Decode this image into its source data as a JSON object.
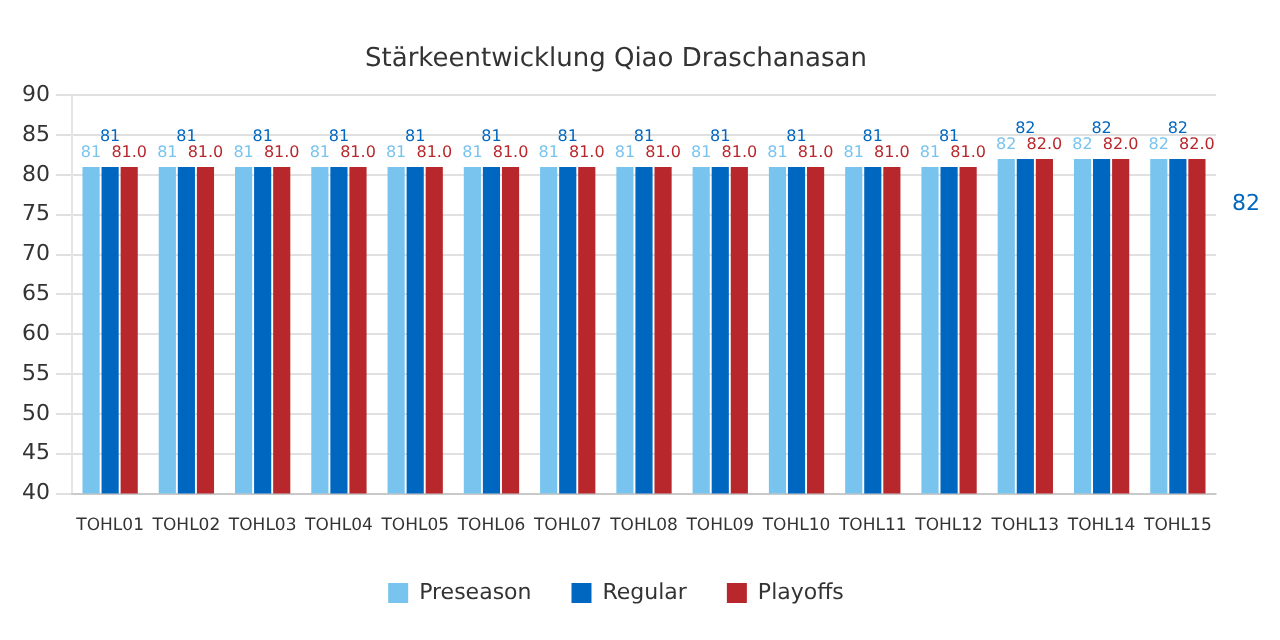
{
  "chart_data": {
    "type": "bar",
    "title": "Stärkeentwicklung Qiao Draschanasan",
    "categories": [
      "TOHL01",
      "TOHL02",
      "TOHL03",
      "TOHL04",
      "TOHL05",
      "TOHL06",
      "TOHL07",
      "TOHL08",
      "TOHL09",
      "TOHL10",
      "TOHL11",
      "TOHL12",
      "TOHL13",
      "TOHL14",
      "TOHL15"
    ],
    "series": [
      {
        "name": "Preseason",
        "color": "#78c4ee",
        "values": [
          81,
          81,
          81,
          81,
          81,
          81,
          81,
          81,
          81,
          81,
          81,
          81,
          82,
          82,
          82
        ],
        "value_labels": [
          "81",
          "81",
          "81",
          "81",
          "81",
          "81",
          "81",
          "81",
          "81",
          "81",
          "81",
          "81",
          "82",
          "82",
          "82"
        ]
      },
      {
        "name": "Regular",
        "color": "#0067c0",
        "values": [
          81,
          81,
          81,
          81,
          81,
          81,
          81,
          81,
          81,
          81,
          81,
          81,
          82,
          82,
          82
        ],
        "value_labels": [
          "81",
          "81",
          "81",
          "81",
          "81",
          "81",
          "81",
          "81",
          "81",
          "81",
          "81",
          "81",
          "82",
          "82",
          "82"
        ]
      },
      {
        "name": "Playoffs",
        "color": "#b8272b",
        "values": [
          81,
          81,
          81,
          81,
          81,
          81,
          81,
          81,
          81,
          81,
          81,
          81,
          82,
          82,
          82
        ],
        "value_labels": [
          "81.0",
          "81.0",
          "81.0",
          "81.0",
          "81.0",
          "81.0",
          "81.0",
          "81.0",
          "81.0",
          "81.0",
          "81.0",
          "81.0",
          "82.0",
          "82.0",
          "82.0"
        ]
      }
    ],
    "ylim": [
      40,
      90
    ],
    "yticks": [
      40,
      45,
      50,
      55,
      60,
      65,
      70,
      75,
      80,
      85,
      90
    ],
    "grid": "y",
    "legend": "bottom",
    "annotations": [
      "82"
    ]
  }
}
